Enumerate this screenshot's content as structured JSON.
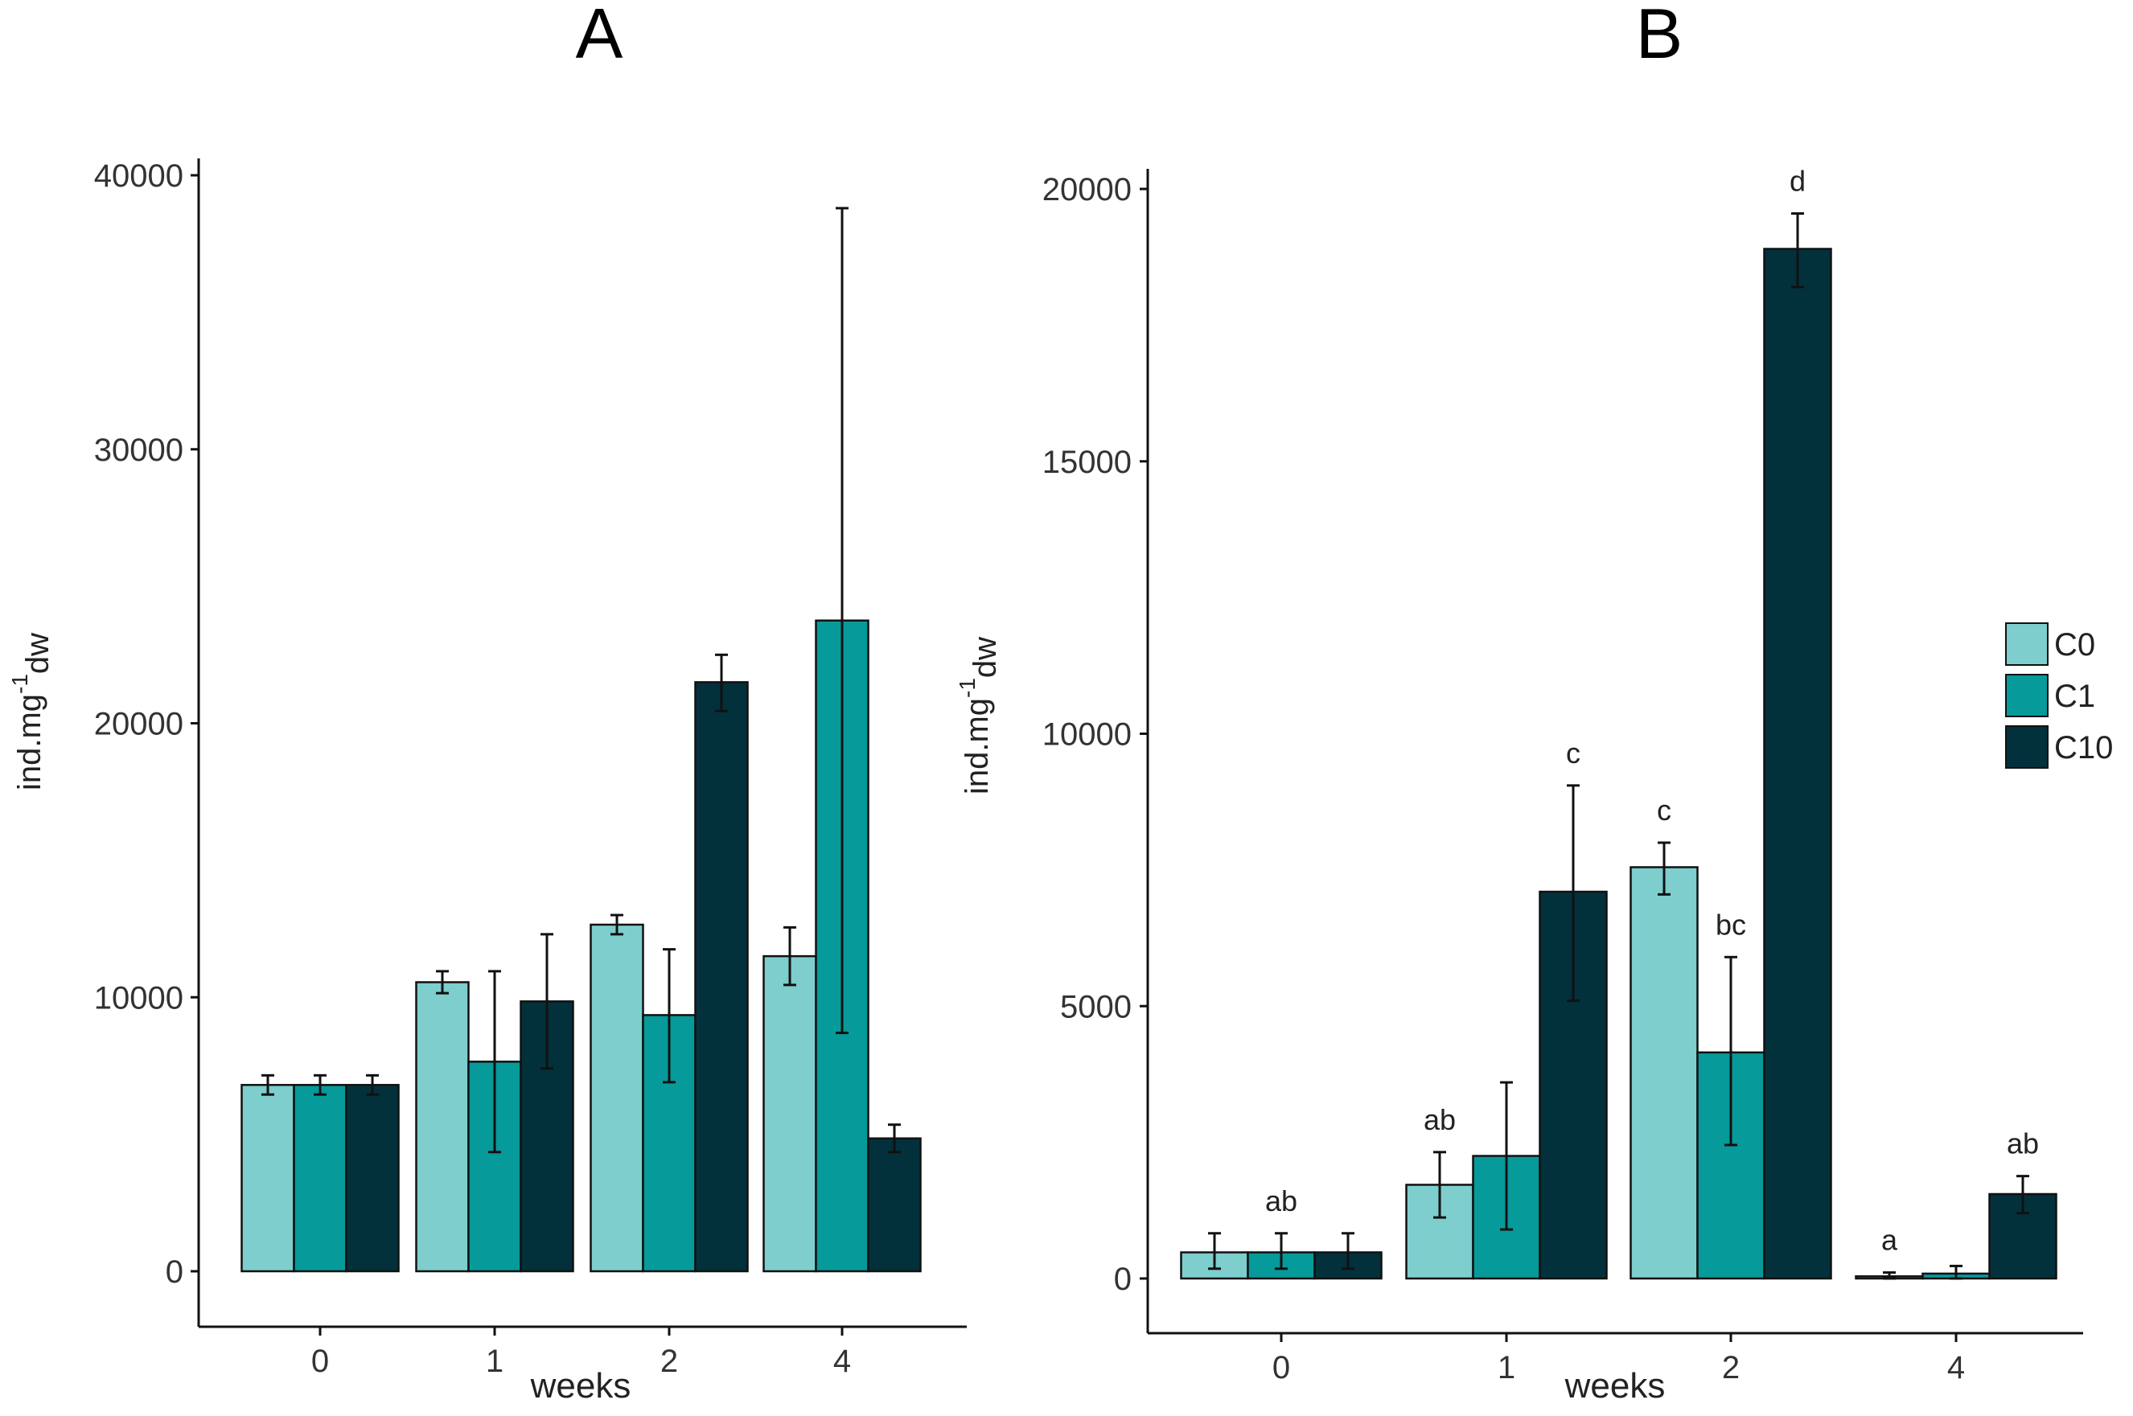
{
  "legend": {
    "items": [
      {
        "label": "C0",
        "color": "#7ecece"
      },
      {
        "label": "C1",
        "color": "#079a9a"
      },
      {
        "label": "C10",
        "color": "#02313c"
      }
    ]
  },
  "chart_data": [
    {
      "type": "bar",
      "title": "A",
      "xlabel": "weeks",
      "ylabel_main": "ind.mg",
      "ylabel_sup": "-1",
      "ylabel_sub": "dw",
      "ylim": [
        0,
        40000
      ],
      "yticks": [
        0,
        10000,
        20000,
        30000,
        40000
      ],
      "categories": [
        "0",
        "1",
        "2",
        "4"
      ],
      "series": [
        {
          "name": "C0",
          "values": [
            6800,
            10550,
            12650,
            11500
          ],
          "err_low": [
            6450,
            10150,
            12300,
            10450
          ],
          "err_high": [
            7150,
            10950,
            13000,
            12550
          ]
        },
        {
          "name": "C1",
          "values": [
            6800,
            7650,
            9350,
            23750
          ],
          "err_low": [
            6450,
            4350,
            6900,
            8700
          ],
          "err_high": [
            7150,
            10950,
            11750,
            38800
          ]
        },
        {
          "name": "C10",
          "values": [
            6800,
            9850,
            21500,
            4850
          ],
          "err_low": [
            6450,
            7400,
            20450,
            4350
          ],
          "err_high": [
            7150,
            12300,
            22500,
            5350
          ]
        }
      ],
      "letters": []
    },
    {
      "type": "bar",
      "title": "B",
      "xlabel": "weeks",
      "ylabel_main": "ind.mg",
      "ylabel_sup": "-1",
      "ylabel_sub": "dw",
      "ylim": [
        0,
        20000
      ],
      "yticks": [
        0,
        5000,
        10000,
        15000,
        20000
      ],
      "categories": [
        "0",
        "1",
        "2",
        "4"
      ],
      "series": [
        {
          "name": "C0",
          "values": [
            480,
            1720,
            7550,
            40
          ],
          "err_low": [
            180,
            1120,
            7050,
            0
          ],
          "err_high": [
            830,
            2320,
            8000,
            110
          ]
        },
        {
          "name": "C1",
          "values": [
            480,
            2250,
            4150,
            90
          ],
          "err_low": [
            180,
            900,
            2450,
            0
          ],
          "err_high": [
            830,
            3600,
            5900,
            230
          ]
        },
        {
          "name": "C10",
          "values": [
            480,
            7100,
            18900,
            1550
          ],
          "err_low": [
            180,
            5100,
            18200,
            1200
          ],
          "err_high": [
            830,
            9050,
            19550,
            1880
          ]
        }
      ],
      "letters": [
        {
          "category": "0",
          "text": "ab"
        },
        {
          "category": "1",
          "text": "ab"
        },
        {
          "category": "1",
          "text": "c"
        },
        {
          "category": "2",
          "text": "c"
        },
        {
          "category": "2",
          "text": "bc"
        },
        {
          "category": "2",
          "text": "d"
        },
        {
          "category": "4",
          "text": "a"
        },
        {
          "category": "4",
          "text": "ab"
        }
      ]
    }
  ]
}
